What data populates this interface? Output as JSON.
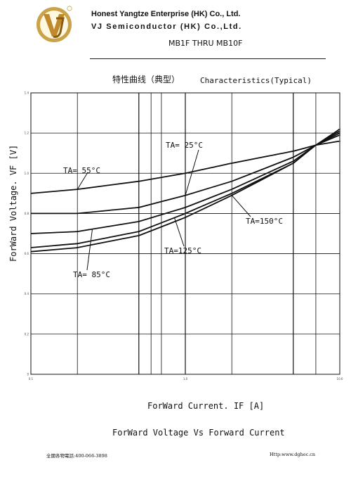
{
  "header": {
    "company_line1": "Honest Yangtze Enterprise (HK) Co., Ltd.",
    "company_line2": "VJ Semiconductor (HK) Co.,Ltd.",
    "part_range": "MB1F THRU MB10F",
    "logo_text": "VJ"
  },
  "titles": {
    "cn": "特性曲线（典型）",
    "en": "Characteristics(Typical)"
  },
  "axes": {
    "ylabel": "ForWard Voltage. VF [V]",
    "xlabel": "ForWard Current. IF [A]"
  },
  "subtitle": "ForWard Voltage Vs Forward Current",
  "footer": {
    "left": "全國各物電話:400-066-3898",
    "right": "Http:www.dghec.cn"
  },
  "chart_data": {
    "type": "line",
    "xscale": "log",
    "xlim": [
      0.1,
      10.0
    ],
    "ylim": [
      0,
      1.4
    ],
    "x_ticks": [
      "0.1",
      "1.0",
      "10.0"
    ],
    "y_ticks": [
      "0",
      "0.2",
      "0.4",
      "0.6",
      "0.8",
      "1.0",
      "1.2",
      "1.4"
    ],
    "grid": true,
    "series": [
      {
        "name": "TA= 55°C",
        "x": [
          0.1,
          0.2,
          0.5,
          1.0,
          2.0,
          5.0,
          7.0,
          10.0
        ],
        "y": [
          0.9,
          0.92,
          0.96,
          1.0,
          1.05,
          1.11,
          1.14,
          1.16
        ]
      },
      {
        "name": "TA= 25°C",
        "x": [
          0.1,
          0.2,
          0.5,
          1.0,
          2.0,
          5.0,
          7.0,
          10.0
        ],
        "y": [
          0.8,
          0.8,
          0.83,
          0.89,
          0.96,
          1.08,
          1.14,
          1.19
        ]
      },
      {
        "name": "TA= 85°C",
        "x": [
          0.1,
          0.2,
          0.5,
          1.0,
          2.0,
          5.0,
          7.0,
          10.0
        ],
        "y": [
          0.7,
          0.71,
          0.76,
          0.83,
          0.92,
          1.06,
          1.14,
          1.2
        ]
      },
      {
        "name": "TA=125°C",
        "x": [
          0.1,
          0.2,
          0.5,
          1.0,
          2.0,
          5.0,
          7.0,
          10.0
        ],
        "y": [
          0.63,
          0.65,
          0.71,
          0.8,
          0.9,
          1.05,
          1.14,
          1.21
        ]
      },
      {
        "name": "TA=150°C",
        "x": [
          0.1,
          0.2,
          0.5,
          1.0,
          2.0,
          5.0,
          7.0,
          10.0
        ],
        "y": [
          0.61,
          0.63,
          0.69,
          0.78,
          0.89,
          1.05,
          1.14,
          1.22
        ]
      }
    ],
    "annotations": [
      {
        "text": "TA= 55°C",
        "series": 0
      },
      {
        "text": "TA= 25°C",
        "series": 1
      },
      {
        "text": "TA= 85°C",
        "series": 2
      },
      {
        "text": "TA=125°C",
        "series": 3
      },
      {
        "text": "TA=150°C",
        "series": 4
      }
    ]
  }
}
